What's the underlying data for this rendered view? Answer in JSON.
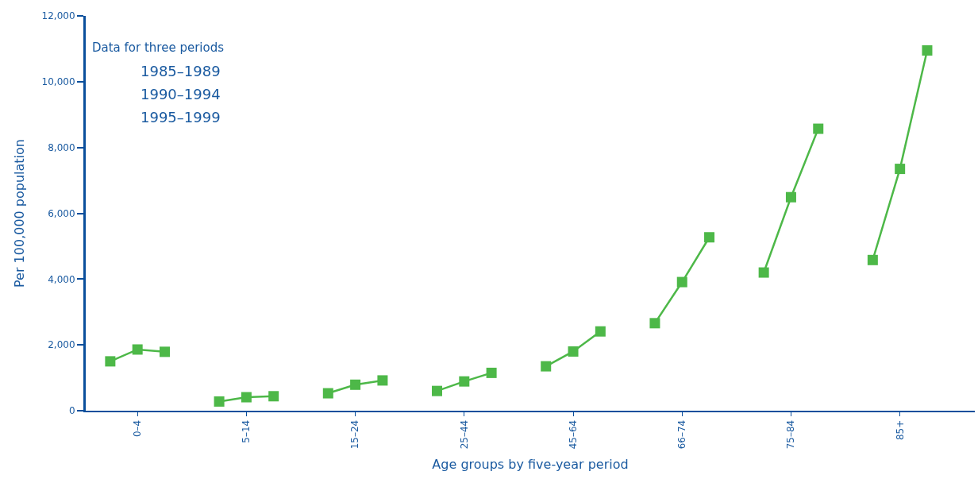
{
  "chart_data": {
    "type": "line",
    "xlabel": "Age groups by five-year period",
    "ylabel": "Per 100,000 population",
    "categories": [
      null,
      "0–4",
      null,
      null,
      null,
      "5–14",
      null,
      null,
      null,
      "15–24",
      null,
      null,
      null,
      "25–44",
      null,
      null,
      null,
      "45–64",
      null,
      null,
      null,
      "66–74",
      null,
      null,
      null,
      "75–84",
      null,
      null,
      null,
      "85+",
      null,
      null
    ],
    "values": [
      1500,
      1860,
      1790,
      null,
      280,
      410,
      440,
      null,
      530,
      790,
      920,
      null,
      600,
      890,
      1150,
      null,
      1350,
      1800,
      2410,
      null,
      2660,
      3910,
      5270,
      null,
      4200,
      6490,
      8570,
      null,
      4580,
      7350,
      10950,
      null
    ],
    "color": "#4db848",
    "marker": "square",
    "line_style": "solid",
    "ylim": [
      0,
      12000
    ],
    "yticks": [
      0,
      {
        "value": 2000,
        "label": "2,000"
      },
      {
        "value": 4000,
        "label": "4,000"
      },
      {
        "value": 6000,
        "label": "6,000"
      },
      {
        "value": 8000,
        "label": "8,000"
      },
      {
        "value": 10000,
        "label": "10,000"
      },
      {
        "value": 12000,
        "label": "12,000"
      }
    ],
    "grid": false,
    "legend": false,
    "annotations": [
      "Data for three periods",
      "1985–1989",
      "1990–1994",
      "1995–1999"
    ]
  }
}
